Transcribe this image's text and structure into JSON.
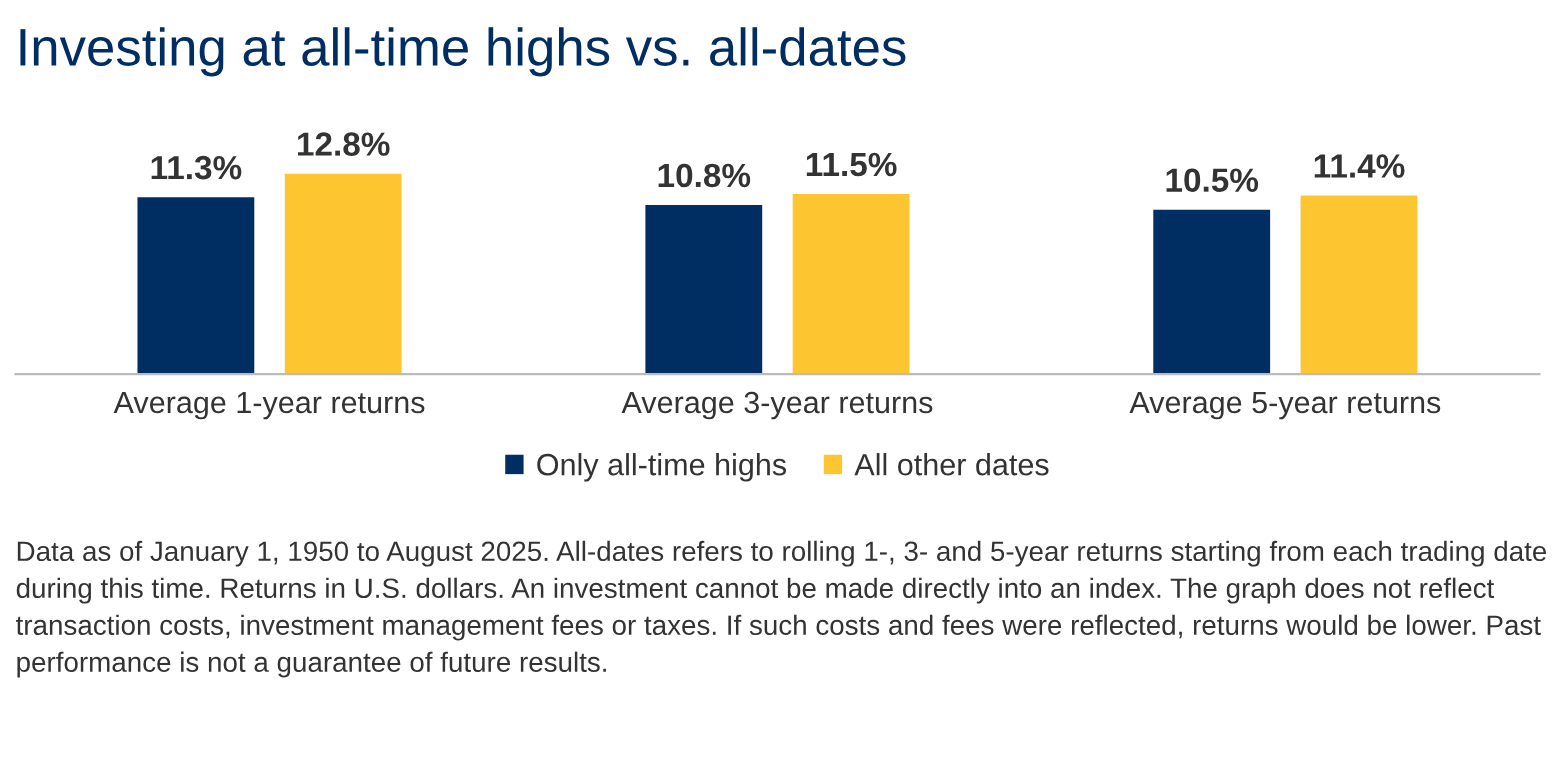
{
  "chart_data": {
    "type": "bar",
    "title": "Investing at all-time highs vs. all-dates",
    "categories": [
      "Average 1-year returns",
      "Average 3-year returns",
      "Average 5-year returns"
    ],
    "series": [
      {
        "name": "Only all-time highs",
        "color": "#002d62",
        "values": [
          11.3,
          10.8,
          10.5
        ],
        "value_labels": [
          "11.3%",
          "10.8%",
          "10.5%"
        ]
      },
      {
        "name": "All other dates",
        "color": "#fdc52f",
        "values": [
          12.8,
          11.5,
          11.4
        ],
        "value_labels": [
          "12.8%",
          "11.5%",
          "11.4%"
        ]
      }
    ],
    "legend": "bottom",
    "grid": false,
    "annotations": [
      "Data as of January 1, 1950 to August 2025. All-dates refers to rolling 1-, 3- and 5-year returns starting from each trading date during this time. Returns in U.S. dollars. An investment cannot be made directly into an index. The graph does not reflect transaction costs, investment management fees or taxes. If such costs and fees were reflected, returns would be lower. Past performance is not a guarantee of future results."
    ]
  }
}
